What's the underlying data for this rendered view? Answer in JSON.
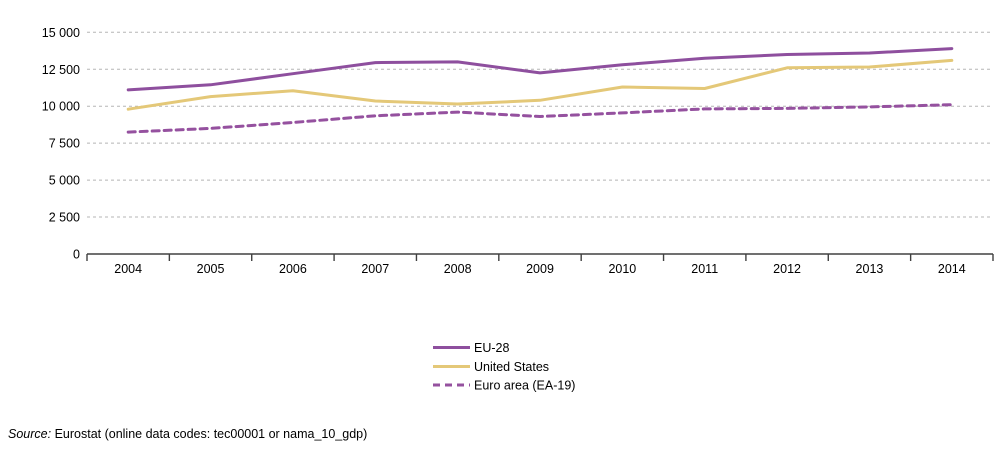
{
  "chart_data": {
    "type": "line",
    "title": "",
    "xlabel": "",
    "ylabel": "",
    "x": [
      "2004",
      "2005",
      "2006",
      "2007",
      "2008",
      "2009",
      "2010",
      "2011",
      "2012",
      "2013",
      "2014"
    ],
    "series": [
      {
        "name": "EU-28",
        "color": "#8e4f9e",
        "dashed": false,
        "values": [
          11100,
          11450,
          12200,
          12950,
          13000,
          12250,
          12800,
          13250,
          13500,
          13600,
          13900
        ]
      },
      {
        "name": "United States",
        "color": "#e4c878",
        "dashed": false,
        "values": [
          9800,
          10650,
          11050,
          10350,
          10150,
          10400,
          11300,
          11200,
          12600,
          12650,
          13100
        ]
      },
      {
        "name": "Euro area (EA-19)",
        "color": "#95519f",
        "dashed": true,
        "values": [
          8250,
          8500,
          8900,
          9350,
          9600,
          9300,
          9550,
          9820,
          9850,
          9950,
          10100
        ]
      }
    ],
    "ylim": [
      0,
      15000
    ],
    "ytick_step": 2500,
    "yticks": [
      {
        "value": 0,
        "label": "0"
      },
      {
        "value": 2500,
        "label": "2 500"
      },
      {
        "value": 5000,
        "label": "5 000"
      },
      {
        "value": 7500,
        "label": "7 500"
      },
      {
        "value": 10000,
        "label": "10 000"
      },
      {
        "value": 12500,
        "label": "12 500"
      },
      {
        "value": 15000,
        "label": "15 000"
      }
    ],
    "grid": "horizontal-dashed",
    "legend_position": "bottom-center",
    "axis_color": "#404040",
    "grid_color": "#b5b5b5"
  },
  "source": {
    "label": "Source:",
    "text": " Eurostat (online data codes: tec00001 or nama_10_gdp)"
  }
}
